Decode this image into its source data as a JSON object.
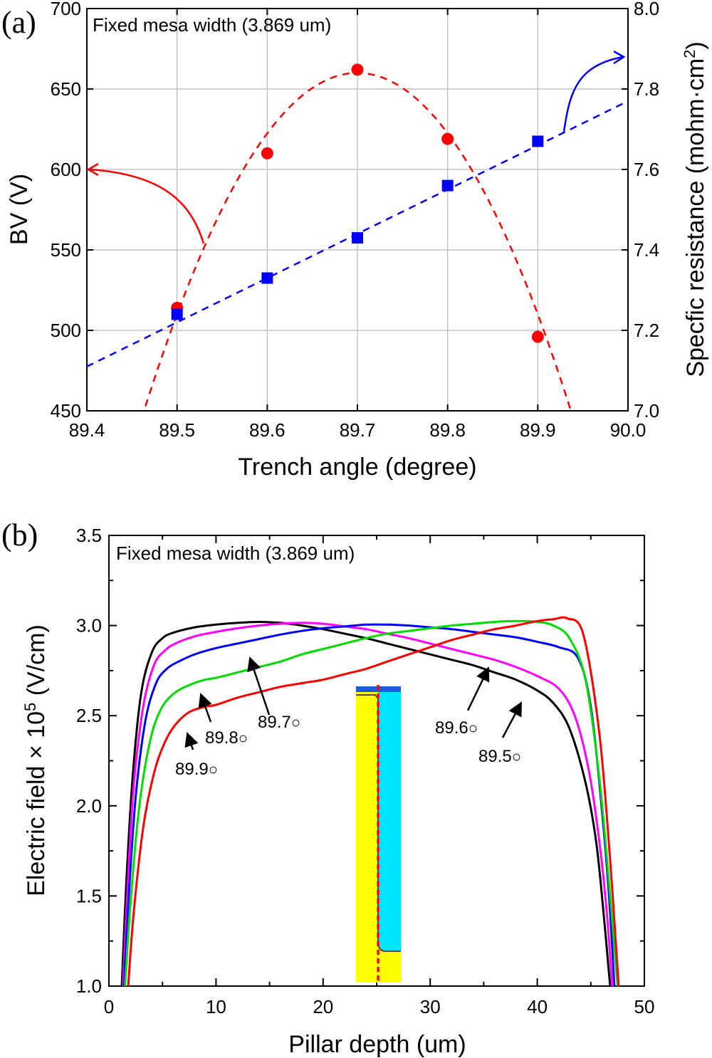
{
  "chart_data": [
    {
      "panel": "(a)",
      "type": "scatter",
      "annotation": "Fixed mesa width (3.869 um)",
      "xlabel": "Trench angle (degree)",
      "ylabel": "BV (V)",
      "y2label": "Specfic resistance (mohm·cm²)",
      "y2label_main": "Specfic resistance (mohm·cm",
      "y2label_sup": "2",
      "y2label_close": ")",
      "xlim": [
        89.4,
        90.0
      ],
      "ylim": [
        450,
        700
      ],
      "y2lim": [
        7.0,
        8.0
      ],
      "x_ticks": [
        "89.4",
        "89.5",
        "89.6",
        "89.7",
        "89.8",
        "89.9",
        "90.0"
      ],
      "y_ticks": [
        "450",
        "500",
        "550",
        "600",
        "650",
        "700"
      ],
      "y2_ticks": [
        "7.0",
        "7.2",
        "7.4",
        "7.6",
        "7.8",
        "8.0"
      ],
      "grid": true,
      "series": [
        {
          "color": "#ff0000",
          "marker": "circle",
          "axis": "left",
          "x": [
            89.5,
            89.6,
            89.7,
            89.8,
            89.9
          ],
          "values": [
            514,
            610,
            662,
            619,
            496
          ],
          "fit": {
            "kind": "quadratic",
            "x": [
              89.5,
              89.6,
              89.7,
              89.8,
              89.9
            ],
            "y": [
              510,
              625,
              660,
              625,
              510
            ]
          }
        },
        {
          "color": "#0000ff",
          "marker": "square",
          "axis": "right",
          "x": [
            89.5,
            89.6,
            89.7,
            89.8,
            89.9
          ],
          "values": [
            7.24,
            7.33,
            7.43,
            7.56,
            7.67
          ],
          "fit": {
            "kind": "linear",
            "x": [
              89.4,
              90.0
            ],
            "y": [
              7.11,
              7.77
            ]
          }
        }
      ]
    },
    {
      "panel": "(b)",
      "type": "line",
      "annotation": "Fixed mesa width (3.869 um)",
      "xlabel": "Pillar depth (um)",
      "ylabel_main": "Electric field × 10",
      "ylabel_sup": "5",
      "ylabel_close": " (V/cm)",
      "xlim": [
        0,
        50
      ],
      "ylim": [
        1.0,
        3.5
      ],
      "x_ticks": [
        "0",
        "10",
        "20",
        "30",
        "40",
        "50"
      ],
      "y_ticks": [
        "1.0",
        "1.5",
        "2.0",
        "2.5",
        "3.0",
        "3.5"
      ],
      "grid": false,
      "series": [
        {
          "name": "89.5°",
          "label": "89.5",
          "color": "#000000",
          "x": [
            1.2,
            1.6,
            2.2,
            3.0,
            4.0,
            5.0,
            6.0,
            8.0,
            10.0,
            12.0,
            14.0,
            16.0,
            18.0,
            20.0,
            22.0,
            24.0,
            26.0,
            28.0,
            30.0,
            32.0,
            34.0,
            36.0,
            38.0,
            40.0,
            41.5,
            43.0,
            44.5,
            45.5,
            46.2,
            46.8
          ],
          "values": [
            1.0,
            1.55,
            2.15,
            2.62,
            2.85,
            2.93,
            2.96,
            2.99,
            3.005,
            3.015,
            3.02,
            3.015,
            3.0,
            2.98,
            2.955,
            2.93,
            2.9,
            2.87,
            2.84,
            2.81,
            2.78,
            2.74,
            2.7,
            2.64,
            2.57,
            2.43,
            2.13,
            1.8,
            1.4,
            1.0
          ]
        },
        {
          "name": "89.6°",
          "label": "89.6",
          "color": "#ff00ff",
          "x": [
            1.3,
            1.7,
            2.3,
            3.2,
            4.2,
            5.2,
            6.2,
            8.0,
            10.0,
            12.0,
            14.0,
            16.0,
            18.0,
            20.0,
            22.0,
            24.0,
            26.0,
            28.0,
            30.0,
            32.0,
            34.0,
            36.0,
            38.0,
            40.0,
            42.0,
            43.5,
            44.8,
            45.8,
            46.5,
            47.0
          ],
          "values": [
            1.0,
            1.5,
            2.1,
            2.55,
            2.78,
            2.86,
            2.9,
            2.94,
            2.965,
            2.985,
            3.0,
            3.01,
            3.015,
            3.01,
            2.995,
            2.98,
            2.955,
            2.93,
            2.9,
            2.87,
            2.84,
            2.81,
            2.77,
            2.72,
            2.65,
            2.5,
            2.2,
            1.8,
            1.4,
            1.0
          ]
        },
        {
          "name": "89.7°",
          "label": "89.7",
          "color": "#0000ff",
          "x": [
            1.4,
            1.8,
            2.5,
            3.4,
            4.4,
            5.4,
            6.5,
            8.0,
            10.0,
            12.0,
            14.0,
            16.0,
            18.0,
            20.0,
            22.0,
            24.0,
            26.0,
            28.0,
            30.0,
            32.0,
            34.0,
            36.0,
            38.0,
            40.0,
            42.0,
            43.8,
            45.0,
            46.0,
            46.7,
            47.2
          ],
          "values": [
            1.0,
            1.45,
            2.05,
            2.47,
            2.68,
            2.76,
            2.8,
            2.84,
            2.875,
            2.9,
            2.925,
            2.95,
            2.97,
            2.985,
            2.995,
            3.005,
            3.005,
            3.0,
            2.99,
            2.98,
            2.965,
            2.95,
            2.935,
            2.91,
            2.88,
            2.82,
            2.55,
            2.0,
            1.5,
            1.0
          ]
        },
        {
          "name": "89.8°",
          "label": "89.8",
          "color": "#00dd00",
          "x": [
            1.5,
            2.0,
            2.8,
            3.8,
            4.8,
            6.0,
            7.5,
            9.0,
            10.0,
            12.0,
            14.0,
            16.0,
            18.0,
            20.0,
            22.0,
            24.0,
            26.0,
            28.0,
            30.0,
            32.0,
            34.0,
            36.0,
            38.0,
            40.0,
            41.5,
            43.0,
            44.5,
            45.8,
            46.8,
            47.5
          ],
          "values": [
            1.0,
            1.45,
            1.98,
            2.35,
            2.53,
            2.62,
            2.67,
            2.7,
            2.71,
            2.74,
            2.77,
            2.8,
            2.84,
            2.87,
            2.9,
            2.93,
            2.955,
            2.97,
            2.985,
            3.0,
            3.01,
            3.02,
            3.025,
            3.02,
            3.0,
            2.93,
            2.7,
            2.15,
            1.5,
            1.0
          ]
        },
        {
          "name": "89.9°",
          "label": "89.9",
          "color": "#ff0000",
          "x": [
            1.8,
            2.3,
            3.2,
            4.2,
            5.2,
            6.2,
            7.5,
            9.0,
            10.0,
            12.0,
            14.0,
            16.0,
            18.0,
            20.0,
            22.0,
            24.0,
            26.0,
            28.0,
            30.0,
            32.0,
            34.0,
            36.0,
            38.0,
            40.0,
            41.5,
            42.8,
            44.3,
            45.8,
            46.8,
            47.6
          ],
          "values": [
            1.0,
            1.4,
            1.88,
            2.18,
            2.35,
            2.45,
            2.52,
            2.55,
            2.56,
            2.6,
            2.63,
            2.66,
            2.68,
            2.7,
            2.73,
            2.76,
            2.8,
            2.84,
            2.88,
            2.92,
            2.95,
            2.98,
            3.0,
            3.025,
            3.035,
            3.04,
            2.95,
            2.4,
            1.7,
            1.0
          ]
        }
      ]
    }
  ]
}
